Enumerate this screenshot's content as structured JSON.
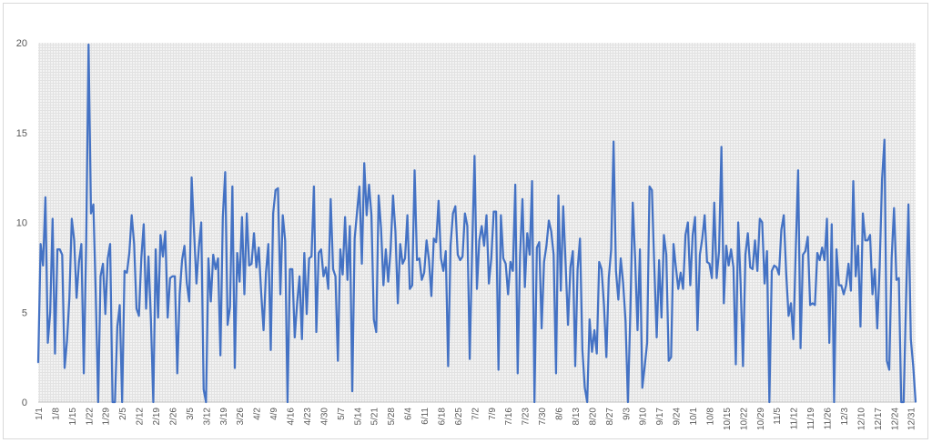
{
  "chart_data": {
    "type": "line",
    "title": "",
    "xlabel": "",
    "ylabel": "",
    "ylim": [
      0,
      20
    ],
    "y_ticks": [
      "0",
      "5",
      "10",
      "15",
      "20"
    ],
    "grid": "dense light-gray vertical and horizontal lines",
    "line_color": "#4472c4",
    "x_tick_labels": [
      "1/1",
      "1/8",
      "1/15",
      "1/22",
      "1/29",
      "2/5",
      "2/12",
      "2/19",
      "2/26",
      "3/5",
      "3/12",
      "3/19",
      "3/26",
      "4/2",
      "4/9",
      "4/16",
      "4/23",
      "4/30",
      "5/7",
      "5/14",
      "5/21",
      "5/28",
      "6/4",
      "6/11",
      "6/18",
      "6/25",
      "7/2",
      "7/9",
      "7/16",
      "7/23",
      "7/30",
      "8/6",
      "8/13",
      "8/20",
      "8/27",
      "9/3",
      "9/10",
      "9/17",
      "9/24",
      "10/1",
      "10/8",
      "10/15",
      "10/22",
      "10/29",
      "11/5",
      "11/12",
      "11/19",
      "11/26",
      "12/3",
      "12/10",
      "12/17",
      "12/24",
      "12/31"
    ],
    "series": [
      {
        "values": [
          2.2,
          8.8,
          7.6,
          11.4,
          3.3,
          5.0,
          10.2,
          2.7,
          8.5,
          8.5,
          8.2,
          1.9,
          3.4,
          5.8,
          10.2,
          9.0,
          5.8,
          7.8,
          8.8,
          1.6,
          8.8,
          19.9,
          10.5,
          11.0,
          6.0,
          0.0,
          7.0,
          7.7,
          4.9,
          8.0,
          8.8,
          0.0,
          0.0,
          4.2,
          5.4,
          0.0,
          7.3,
          7.2,
          8.3,
          10.4,
          8.8,
          5.2,
          4.8,
          8.0,
          9.9,
          5.2,
          8.1,
          4.6,
          0.0,
          8.5,
          4.7,
          9.3,
          8.1,
          9.5,
          4.7,
          6.9,
          7.0,
          7.0,
          1.6,
          6.0,
          7.9,
          8.7,
          6.6,
          5.6,
          12.5,
          9.5,
          6.6,
          8.6,
          10.0,
          0.7,
          0.0,
          8.0,
          5.6,
          8.2,
          7.4,
          8.0,
          2.6,
          10.3,
          12.8,
          4.3,
          5.3,
          12.0,
          1.9,
          8.3,
          6.7,
          10.3,
          6.0,
          10.5,
          7.6,
          7.7,
          9.4,
          7.5,
          8.6,
          6.1,
          4.0,
          7.2,
          8.8,
          2.9,
          10.5,
          11.8,
          11.9,
          6.0,
          10.4,
          9.0,
          0.0,
          7.4,
          7.4,
          3.6,
          5.5,
          7.0,
          3.5,
          8.3,
          4.9,
          8.0,
          8.1,
          12.0,
          3.9,
          8.3,
          8.5,
          7.0,
          7.5,
          6.3,
          11.3,
          7.4,
          7.0,
          2.3,
          8.5,
          7.1,
          10.3,
          6.8,
          9.8,
          0.6,
          9.1,
          10.6,
          12.0,
          7.7,
          13.3,
          10.4,
          12.1,
          10.4,
          4.6,
          3.9,
          11.5,
          9.7,
          6.5,
          8.5,
          6.7,
          8.5,
          11.5,
          9.5,
          5.5,
          8.8,
          7.7,
          8.0,
          10.4,
          6.3,
          6.5,
          12.9,
          7.9,
          8.0,
          6.8,
          7.2,
          9.0,
          7.9,
          5.9,
          9.1,
          8.9,
          11.2,
          8.0,
          7.3,
          8.4,
          2.0,
          8.7,
          10.5,
          10.9,
          8.2,
          7.9,
          8.1,
          10.5,
          9.8,
          2.4,
          8.4,
          13.7,
          6.3,
          9.0,
          9.8,
          8.7,
          10.4,
          6.6,
          8.0,
          10.6,
          10.6,
          1.8,
          10.4,
          8.0,
          7.7,
          6.0,
          7.8,
          7.3,
          12.1,
          1.6,
          8.2,
          11.3,
          6.4,
          9.4,
          8.2,
          12.3,
          0.0,
          8.6,
          8.9,
          4.1,
          7.8,
          8.7,
          10.1,
          9.5,
          8.2,
          1.6,
          11.5,
          6.2,
          10.9,
          7.7,
          4.3,
          7.5,
          8.4,
          2.0,
          7.4,
          9.1,
          2.9,
          0.8,
          0.0,
          4.6,
          2.8,
          4.0,
          2.7,
          7.8,
          7.4,
          5.4,
          2.5,
          6.9,
          8.5,
          14.5,
          7.3,
          5.7,
          8.0,
          6.6,
          4.5,
          0.0,
          5.0,
          11.1,
          8.0,
          4.0,
          8.5,
          0.8,
          2.0,
          3.3,
          12.0,
          11.8,
          7.5,
          3.6,
          7.9,
          4.7,
          9.3,
          8.2,
          2.3,
          2.5,
          8.8,
          7.5,
          6.3,
          7.2,
          6.3,
          9.3,
          10.0,
          6.5,
          9.3,
          10.3,
          4.0,
          8.2,
          9.1,
          10.4,
          7.8,
          7.7,
          6.9,
          11.1,
          6.9,
          8.4,
          14.2,
          5.5,
          8.7,
          7.6,
          8.5,
          7.5,
          2.1,
          10.0,
          6.6,
          2.0,
          8.2,
          9.4,
          7.5,
          7.4,
          9.0,
          7.3,
          10.2,
          10.0,
          6.6,
          8.4,
          0.0,
          7.3,
          7.6,
          7.5,
          7.1,
          9.6,
          10.4,
          7.2,
          4.8,
          5.5,
          3.5,
          8.5,
          12.9,
          3.0,
          8.2,
          8.4,
          9.2,
          5.4,
          5.5,
          5.4,
          8.3,
          7.9,
          8.6,
          7.9,
          10.2,
          3.3,
          9.9,
          0.0,
          8.5,
          6.5,
          6.5,
          6.0,
          6.5,
          7.7,
          6.2,
          12.3,
          7.0,
          8.7,
          4.2,
          10.5,
          9.0,
          9.0,
          9.3,
          6.0,
          7.4,
          4.1,
          7.5,
          12.4,
          14.6,
          2.3,
          1.8,
          8.0,
          10.8,
          6.8,
          6.9,
          0.0,
          0.0,
          5.6,
          11.0,
          3.5,
          2.0,
          0.0
        ]
      }
    ]
  }
}
